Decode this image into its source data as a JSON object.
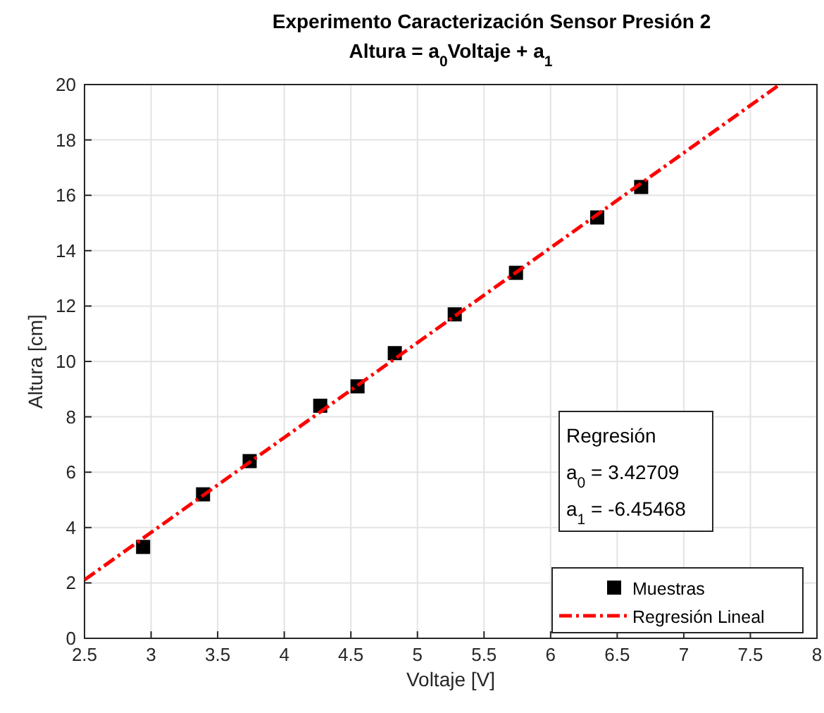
{
  "chart_data": {
    "type": "scatter",
    "title": "Experimento Caracterización Sensor Presión 2",
    "subtitle": "Altura = a$_{0}$Voltaje + a$_{1}$",
    "xlabel": "Voltaje [V]",
    "ylabel": "Altura [cm]",
    "xlim": [
      2.5,
      8
    ],
    "ylim": [
      0,
      20
    ],
    "xticks": [
      2.5,
      3,
      3.5,
      4,
      4.5,
      5,
      5.5,
      6,
      6.5,
      7,
      7.5,
      8
    ],
    "yticks": [
      0,
      2,
      4,
      6,
      8,
      10,
      12,
      14,
      16,
      18,
      20
    ],
    "grid": true,
    "legend": "bottom right",
    "series": [
      {
        "name": "Muestras",
        "color": "#000000",
        "marker": "square",
        "x": [
          2.94,
          3.39,
          3.74,
          4.27,
          4.55,
          4.83,
          5.28,
          5.74,
          6.35,
          6.68
        ],
        "values": [
          3.3,
          5.2,
          6.4,
          8.4,
          9.1,
          10.3,
          11.7,
          13.2,
          15.2,
          16.3
        ]
      },
      {
        "name": "Regresión Lineal",
        "type": "line",
        "color": "#ff0000",
        "line_style": "dashed",
        "x": [
          2.5,
          7.72
        ],
        "values": [
          2.11,
          20.0
        ]
      }
    ],
    "annotations": [
      "Regresión",
      "a$_{0}$ = 3.42709",
      "a$_{1}$ = -6.45468"
    ]
  }
}
